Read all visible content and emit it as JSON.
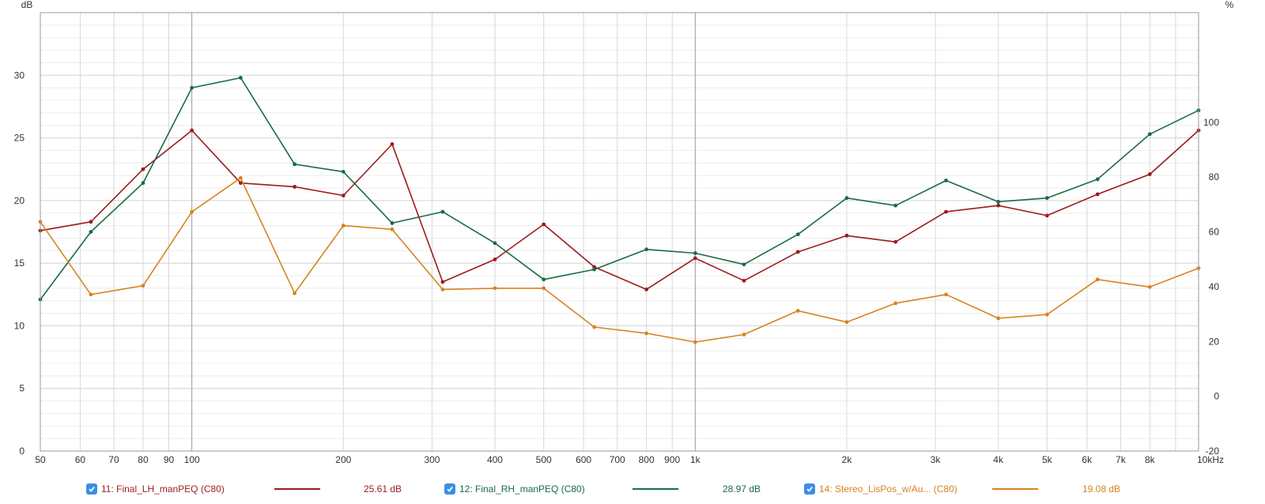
{
  "chart_data": {
    "type": "line",
    "x_scale": "log",
    "x_unit_label": "Hz",
    "xlim": [
      50,
      10000
    ],
    "ylim": [
      0,
      35
    ],
    "ylabel": "dB",
    "y2label": "%",
    "y2lim": [
      -20,
      140
    ],
    "x_ticks": [
      50,
      60,
      70,
      80,
      90,
      100,
      200,
      300,
      400,
      500,
      600,
      700,
      800,
      900,
      1000,
      2000,
      3000,
      4000,
      5000,
      6000,
      7000,
      8000,
      10000
    ],
    "x_tick_labels": [
      "50",
      "60",
      "70",
      "80",
      "90",
      "100",
      "200",
      "300",
      "400",
      "500",
      "600",
      "700",
      "800",
      "900",
      "1k",
      "2k",
      "3k",
      "4k",
      "5k",
      "6k",
      "7k",
      "8k",
      "10kHz"
    ],
    "y_ticks": [
      0,
      5,
      10,
      15,
      20,
      25,
      30
    ],
    "y_tick_labels": [
      "0",
      "5",
      "10",
      "15",
      "20",
      "25",
      "30"
    ],
    "y2_ticks": [
      -20,
      0,
      20,
      40,
      60,
      80,
      100
    ],
    "y2_tick_labels": [
      "-20",
      "0",
      "20",
      "40",
      "60",
      "80",
      "100"
    ],
    "grid": true,
    "x": [
      50,
      63,
      80,
      100,
      125,
      160,
      200,
      250,
      315,
      400,
      500,
      630,
      800,
      1000,
      1250,
      1600,
      2000,
      2500,
      3150,
      4000,
      5000,
      6300,
      8000,
      10000
    ],
    "series": [
      {
        "name": "11: Final_LH_manPEQ (C80)",
        "color": "#9b1c1c",
        "value_label": "25.61 dB",
        "values": [
          17.6,
          18.3,
          22.5,
          25.6,
          21.4,
          21.1,
          20.4,
          24.5,
          13.5,
          15.3,
          18.1,
          14.7,
          12.9,
          15.4,
          13.6,
          15.9,
          17.2,
          16.7,
          19.1,
          19.6,
          18.8,
          20.5,
          22.1,
          25.6
        ]
      },
      {
        "name": "12: Final_RH_manPEQ (C80)",
        "color": "#1b6b45",
        "value_label": "28.97 dB",
        "values": [
          12.1,
          17.5,
          21.4,
          29.0,
          29.8,
          22.9,
          22.3,
          18.2,
          19.1,
          16.6,
          13.7,
          14.5,
          16.1,
          15.8,
          14.9,
          17.3,
          20.2,
          19.6,
          21.6,
          19.9,
          20.2,
          21.7,
          25.3,
          27.2
        ]
      },
      {
        "name": "14: Stereo_LisPos_w/Au... (C80)",
        "color": "#d68420",
        "value_label": "19.08 dB",
        "values": [
          18.3,
          12.5,
          13.2,
          19.1,
          21.8,
          12.6,
          18.0,
          17.7,
          12.9,
          13.0,
          13.0,
          9.9,
          9.4,
          8.7,
          9.3,
          11.2,
          10.3,
          11.8,
          12.5,
          10.6,
          10.9,
          13.7,
          13.1,
          14.6
        ]
      }
    ]
  }
}
